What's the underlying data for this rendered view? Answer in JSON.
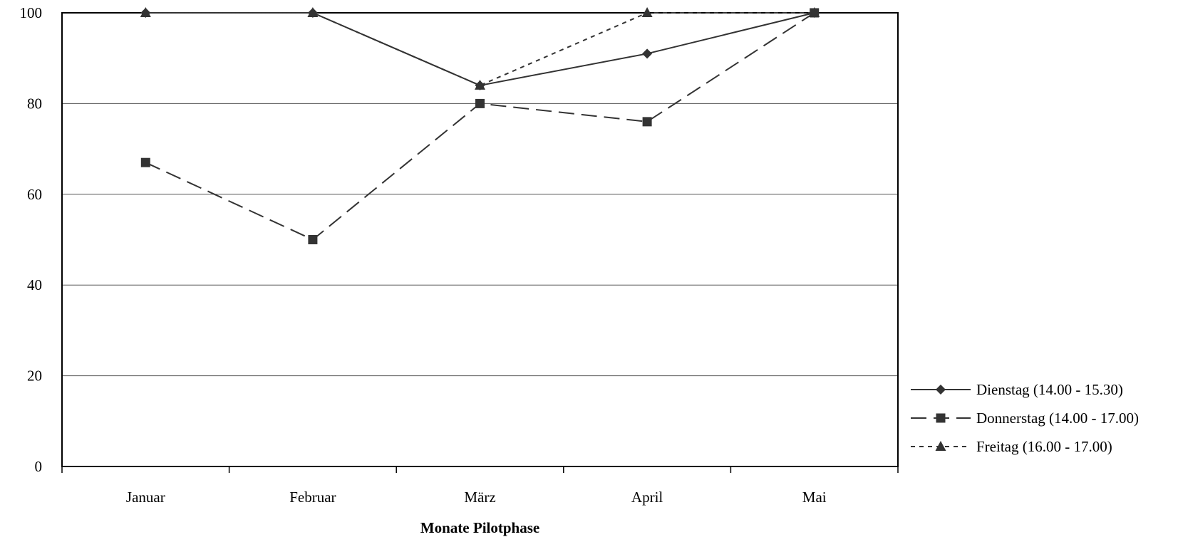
{
  "chart_data": {
    "type": "line",
    "title": "",
    "xlabel": "Monate Pilotphase",
    "ylabel": "",
    "categories": [
      "Januar",
      "Februar",
      "März",
      "April",
      "Mai"
    ],
    "ylim": [
      0,
      100
    ],
    "yticks": [
      0,
      20,
      40,
      60,
      80,
      100
    ],
    "grid": true,
    "legend_position": "right",
    "series": [
      {
        "name": "Dienstag (14.00 - 15.30)",
        "values": [
          100,
          100,
          84,
          91,
          100
        ],
        "marker": "diamond",
        "dash": "solid",
        "color": "#333333"
      },
      {
        "name": "Donnerstag (14.00 - 17.00)",
        "values": [
          67,
          50,
          80,
          76,
          100
        ],
        "marker": "square",
        "dash": "dashed",
        "color": "#333333"
      },
      {
        "name": "Freitag (16.00 - 17.00)",
        "values": [
          100,
          100,
          84,
          100,
          100
        ],
        "marker": "triangle",
        "dash": "dotted",
        "color": "#333333"
      }
    ]
  }
}
